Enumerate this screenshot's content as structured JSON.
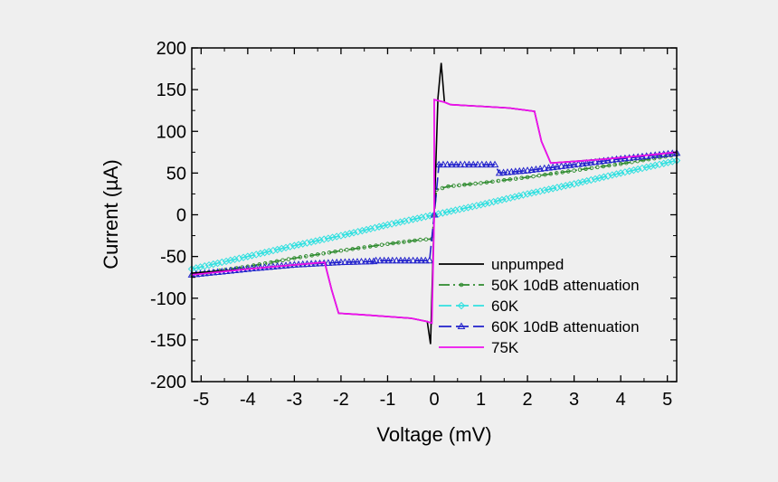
{
  "chart_data": {
    "type": "line",
    "title": "",
    "xlabel": "Voltage (mV)",
    "ylabel": "Current (µA)",
    "xlim": [
      -5.2,
      5.2
    ],
    "ylim": [
      -200,
      200
    ],
    "xticks": [
      -5,
      -4,
      -3,
      -2,
      -1,
      0,
      1,
      2,
      3,
      4,
      5
    ],
    "yticks": [
      -200,
      -150,
      -100,
      -50,
      0,
      50,
      100,
      150,
      200
    ],
    "xtick_labels": [
      "-5",
      "-4",
      "-3",
      "-2",
      "-1",
      "0",
      "1",
      "2",
      "3",
      "4",
      "5"
    ],
    "ytick_labels": [
      "-200",
      "-150",
      "-100",
      "-50",
      "0",
      "50",
      "100",
      "150",
      "200"
    ],
    "grid": false,
    "legend_position": "bottom-right",
    "series": [
      {
        "name": "unpumped",
        "color": "#000000",
        "marker": "none",
        "dash": "solid",
        "points": [
          [
            -5.2,
            -70
          ],
          [
            -4,
            -65
          ],
          [
            -3,
            -60
          ],
          [
            -2.35,
            -57
          ],
          [
            -2.2,
            -90
          ],
          [
            -2.05,
            -118
          ],
          [
            -1.5,
            -120
          ],
          [
            -0.5,
            -124
          ],
          [
            -0.15,
            -128
          ],
          [
            -0.08,
            -155
          ],
          [
            0.0,
            0
          ],
          [
            0.08,
            140
          ],
          [
            0.15,
            182
          ],
          [
            0.22,
            135
          ],
          [
            0.35,
            132
          ],
          [
            1,
            130
          ],
          [
            1.6,
            128
          ],
          [
            2.15,
            124
          ],
          [
            2.3,
            88
          ],
          [
            2.5,
            62
          ],
          [
            3.5,
            66
          ],
          [
            4.5,
            71
          ],
          [
            5.2,
            75
          ]
        ]
      },
      {
        "name": "50K 10dB attenuation",
        "color": "#2e8b2e",
        "marker": "circle",
        "dash": "dashdot",
        "points": [
          [
            -5.2,
            -72
          ],
          [
            -4,
            -62
          ],
          [
            -3,
            -52
          ],
          [
            -2,
            -43
          ],
          [
            -1,
            -35
          ],
          [
            -0.3,
            -30
          ],
          [
            -0.05,
            -29
          ],
          [
            0.0,
            0
          ],
          [
            0.05,
            30
          ],
          [
            0.3,
            34
          ],
          [
            1,
            38
          ],
          [
            2,
            45
          ],
          [
            3,
            53
          ],
          [
            4,
            61
          ],
          [
            5.2,
            72
          ]
        ]
      },
      {
        "name": "60K",
        "color": "#33e0e0",
        "marker": "diamond",
        "dash": "dashed",
        "points": [
          [
            -5.2,
            -65
          ],
          [
            -4,
            -50
          ],
          [
            -3,
            -37
          ],
          [
            -2,
            -25
          ],
          [
            -1,
            -12
          ],
          [
            0,
            0
          ],
          [
            1,
            12
          ],
          [
            2,
            25
          ],
          [
            3,
            37
          ],
          [
            4,
            50
          ],
          [
            5.2,
            65
          ]
        ]
      },
      {
        "name": "60K 10dB attenuation",
        "color": "#2222cc",
        "marker": "triangle",
        "dash": "dashed",
        "points": [
          [
            -5.2,
            -72
          ],
          [
            -4,
            -65
          ],
          [
            -3,
            -60
          ],
          [
            -2,
            -57
          ],
          [
            -1.3,
            -56
          ],
          [
            -1.25,
            -55
          ],
          [
            -0.1,
            -55
          ],
          [
            0.0,
            0
          ],
          [
            0.1,
            60
          ],
          [
            1.3,
            60
          ],
          [
            1.4,
            50
          ],
          [
            2,
            53
          ],
          [
            3,
            60
          ],
          [
            4,
            67
          ],
          [
            5.2,
            74
          ]
        ]
      },
      {
        "name": "75K",
        "color": "#ee11ee",
        "marker": "none",
        "dash": "solid",
        "points": [
          [
            -5.2,
            -72
          ],
          [
            -4,
            -65
          ],
          [
            -3,
            -60
          ],
          [
            -2.35,
            -57
          ],
          [
            -2.2,
            -90
          ],
          [
            -2.05,
            -118
          ],
          [
            -1.5,
            -120
          ],
          [
            -0.5,
            -124
          ],
          [
            -0.15,
            -128
          ],
          [
            -0.05,
            -130
          ],
          [
            0.0,
            0
          ],
          [
            0.0,
            138
          ],
          [
            0.22,
            135
          ],
          [
            0.35,
            132
          ],
          [
            1,
            130
          ],
          [
            1.6,
            128
          ],
          [
            2.15,
            124
          ],
          [
            2.3,
            88
          ],
          [
            2.5,
            62
          ],
          [
            3.5,
            66
          ],
          [
            4.5,
            71
          ],
          [
            5.2,
            75
          ]
        ]
      }
    ]
  }
}
